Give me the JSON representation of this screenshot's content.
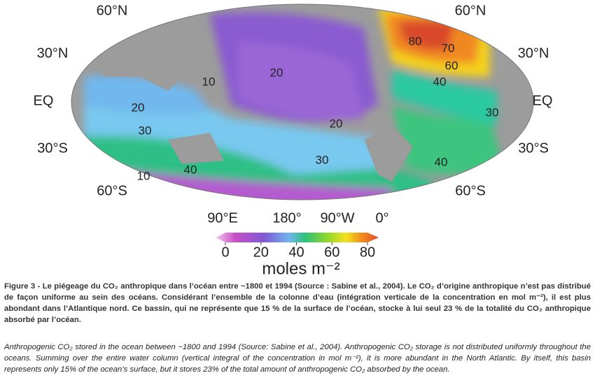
{
  "map": {
    "lat_labels_left": [
      "60°N",
      "30°N",
      "EQ",
      "30°S",
      "60°S"
    ],
    "lat_labels_right": [
      "60°N",
      "30°N",
      "EQ",
      "30°S",
      "60°S"
    ],
    "lon_labels": [
      "90°E",
      "180°",
      "90°W",
      "0°"
    ],
    "contour_labels": [
      80,
      70,
      60,
      40,
      30,
      10,
      20,
      20,
      30,
      20,
      30,
      40,
      10,
      40
    ]
  },
  "colorbar": {
    "lim": [
      0,
      80
    ],
    "ticks": [
      0,
      20,
      40,
      60,
      80
    ],
    "unit": "moles m⁻²"
  },
  "caption": {
    "french": "Figure 3 - Le piégeage du CO₂ anthropique dans l’océan entre ~1800 et 1994 (Source : Sabine et al., 2004). Le CO₂ d’origine anthropique n’est pas distribué de façon uniforme au sein des océans. Considérant l’ensemble de la colonne d’eau (intégration verticale de la concentration en mol m⁻²), il est plus abondant dans l’Atlantique nord. Ce bassin, qui ne représente que 15 % de la surface de l’océan, stocke à lui seul 23 % de la totalité du CO₂ anthropique absorbé par l’océan.",
    "english": "Anthropogenic CO₂ stored in the ocean between ~1800 and 1994 (Source: Sabine et al., 2004). Anthropogenic CO₂ storage is not distributed uniformly throughout the oceans. Summing over the entire water column (vertical integral of the concentration in mol m⁻²), it is more abundant in the North Atlantic. By itself, this basin represents only 15% of the ocean’s surface, but it stores 23% of the total amount of anthropogenic CO₂ absorbed by the ocean."
  }
}
